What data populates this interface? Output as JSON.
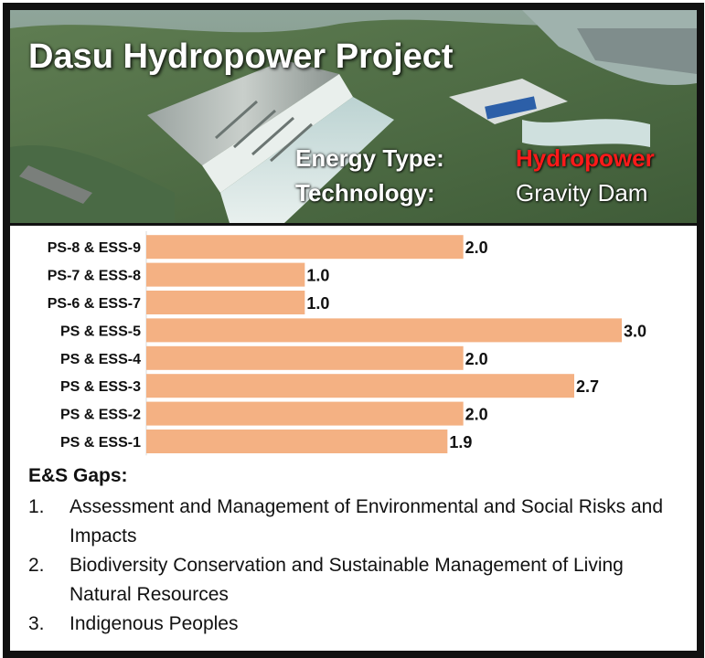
{
  "header": {
    "title": "Dasu Hydropower Project",
    "energy_type_label": "Energy Type:",
    "energy_type_value": "Hydropower",
    "technology_label": "Technology:",
    "technology_value": "Gravity Dam"
  },
  "chart_data": {
    "type": "bar",
    "orientation": "horizontal",
    "categories": [
      "PS-8 & ESS-9",
      "PS-7 & ESS-8",
      "PS-6 & ESS-7",
      "PS & ESS-5",
      "PS & ESS-4",
      "PS & ESS-3",
      "PS & ESS-2",
      "PS & ESS-1"
    ],
    "values": [
      2.0,
      1.0,
      1.0,
      3.0,
      2.0,
      2.7,
      2.0,
      1.9
    ],
    "value_labels": [
      "2.0",
      "1.0",
      "1.0",
      "3.0",
      "2.0",
      "2.7",
      "2.0",
      "1.9"
    ],
    "xlim": [
      0,
      3
    ],
    "bar_color": "#F4B183",
    "grid": false
  },
  "gaps": {
    "heading": "E&S Gaps:",
    "items": [
      {
        "num": "1.",
        "text": "Assessment and Management of Environmental and Social Risks and Impacts"
      },
      {
        "num": "2.",
        "text": "Biodiversity Conservation and Sustainable Management of Living Natural Resources"
      },
      {
        "num": "3.",
        "text": "Indigenous Peoples"
      }
    ]
  },
  "colors": {
    "accent_red": "#ff1a1a",
    "frame": "#111111"
  }
}
